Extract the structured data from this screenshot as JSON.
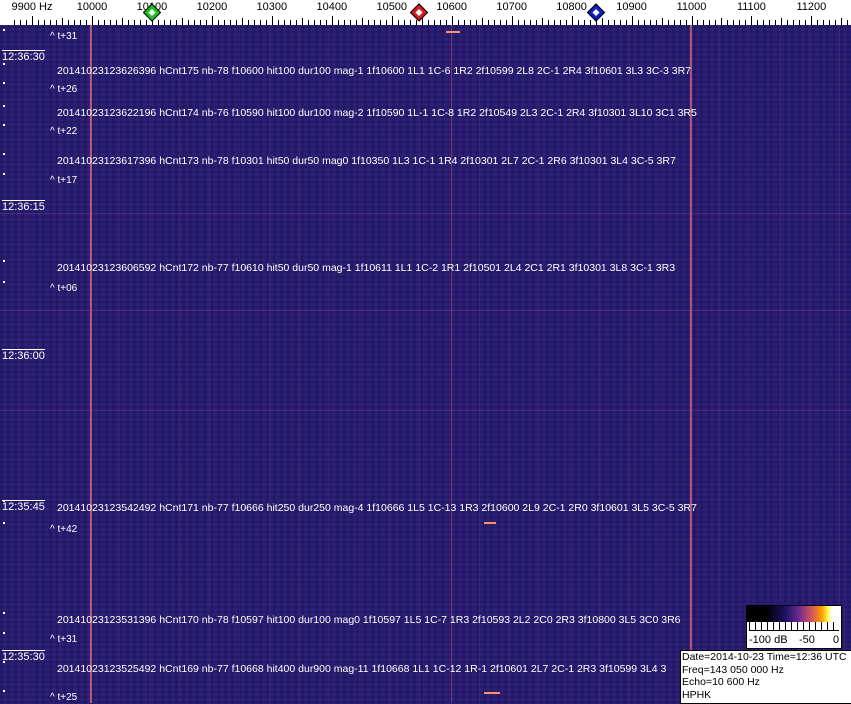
{
  "axis": {
    "unit_label": "9900 Hz",
    "ticks": [
      "10000",
      "10100",
      "10200",
      "10300",
      "10400",
      "10500",
      "10600",
      "10700",
      "10800",
      "10900",
      "11000",
      "11100",
      "11200"
    ],
    "markers": [
      {
        "name": "green-marker",
        "freq_hz": 10100,
        "color": "#20c020"
      },
      {
        "name": "red-marker",
        "freq_hz": 10545,
        "color": "#d02020"
      },
      {
        "name": "blue-marker",
        "freq_hz": 10840,
        "color": "#1020c0"
      }
    ]
  },
  "time_labels": [
    "12:36:30",
    "12:36:15",
    "12:36:00",
    "12:35:45",
    "12:35:30"
  ],
  "offsets": [
    "^ t+31",
    "^ t+26",
    "^ t+22",
    "^ t+17",
    "^ t+06",
    "^ t+42",
    "^ t+31",
    "^ t+25"
  ],
  "detections": [
    "20141023123626396 hCnt175 nb-78 f10600 hit100 dur100 mag-1 1f10600 1L1 1C-6 1R2 2f10599 2L8 2C-1 2R4 3f10601 3L3 3C-3 3R7",
    "20141023123622196 hCnt174 nb-76 f10590 hit100 dur100 mag-2 1f10590 1L-1 1C-8 1R2 2f10549 2L3 2C-1 2R4 3f10301 3L10 3C1 3R5",
    "20141023123617396 hCnt173 nb-78 f10301 hit50 dur50 mag0 1f10350 1L3 1C-1 1R4 2f10301 2L7 2C-1 2R6 3f10301 3L4 3C-5 3R7",
    "20141023123606592 hCnt172 nb-77 f10610 hit50 dur50 mag-1 1f10611 1L1 1C-2 1R1 2f10501 2L4 2C1 2R1 3f10301 3L8 3C-1 3R3",
    "20141023123542492 hCnt171 nb-77 f10666 hit250 dur250 mag-4 1f10666 1L5 1C-13 1R3 2f10600 2L9 2C-1 2R0 3f10601 3L5 3C-5 3R7",
    "20141023123531396 hCnt170 nb-78 f10597 hit100 dur100 mag0 1f10597 1L5 1C-7 1R3 2f10593 2L2 2C0 2R3 3f10800 3L5 3C0 3R6",
    "20141023123525492 hCnt169 nb-77 f10668 hit400 dur900 mag-11 1f10668 1L1 1C-12 1R-1 2f10601 2L7 2C-1 2R3 3f10599 3L4 3"
  ],
  "colorbar": {
    "labels": [
      "-100 dB",
      "-50",
      "0"
    ]
  },
  "info": {
    "line1": "Date=2014-10-23 Time=12:36 UTC",
    "line2": "Freq=143 050 000 Hz",
    "line3": "Echo=10 600 Hz",
    "line4": "HPHK"
  }
}
